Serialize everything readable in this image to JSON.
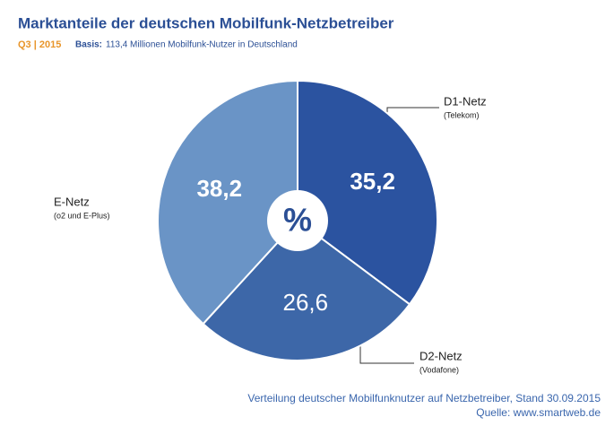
{
  "chart_data": {
    "type": "pie",
    "title": "Marktanteile der deutschen Mobilfunk-Netzbetreiber",
    "period": "Q3 | 2015",
    "basis_label": "Basis:",
    "basis_text": "113,4 Millionen Mobilfunk-Nutzer in Deutschland",
    "categories": [
      "D1-Netz",
      "D2-Netz",
      "E-Netz"
    ],
    "sublabels": [
      "(Telekom)",
      "(Vodafone)",
      "(o2 und E-Plus)"
    ],
    "values": [
      35.2,
      26.6,
      38.2
    ],
    "value_labels": [
      "35,2",
      "26,6",
      "38,2"
    ],
    "colors": [
      "#2b53a0",
      "#3d67a8",
      "#6a94c6"
    ],
    "center_label": "%",
    "notes": [
      "Verteilung deutscher Mobilfunknutzer auf Netzbetreiber, Stand 30.09.2015",
      "Quelle: www.smartweb.de"
    ]
  }
}
